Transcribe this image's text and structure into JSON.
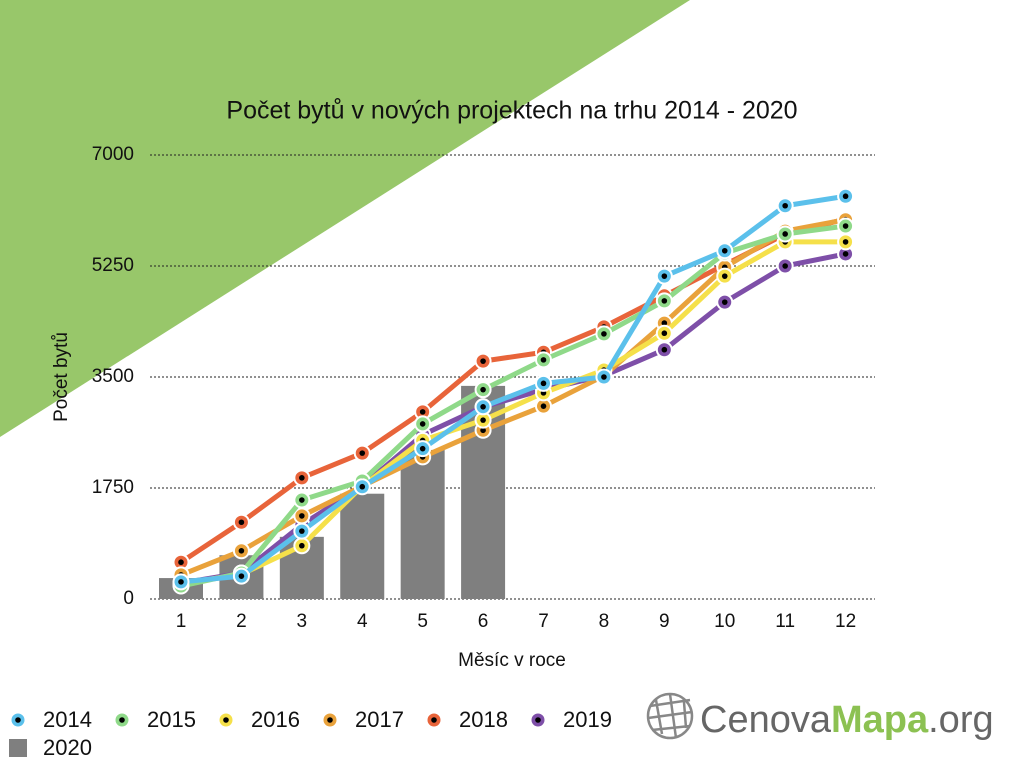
{
  "chart_data": {
    "type": "line",
    "title": "Počet bytů v nových projektech na trhu 2014 - 2020",
    "y_label": "Počet bytů",
    "x_label": "Měsíc v roce",
    "categories": [
      1,
      2,
      3,
      4,
      5,
      6,
      7,
      8,
      9,
      10,
      11,
      12
    ],
    "ylim": [
      0,
      7000
    ],
    "yticks": [
      0,
      1750,
      3500,
      5250,
      7000
    ],
    "grid": true,
    "legend": "bottom",
    "series": [
      {
        "name": "2014",
        "color": "#5bc0eb",
        "values": [
          270,
          360,
          1070,
          1770,
          2370,
          3030,
          3400,
          3500,
          5090,
          5490,
          6200,
          6350
        ]
      },
      {
        "name": "2015",
        "color": "#8fd989",
        "values": [
          205,
          410,
          1560,
          1860,
          2760,
          3300,
          3770,
          4180,
          4700,
          5455,
          5755,
          5880
        ]
      },
      {
        "name": "2016",
        "color": "#f5e04a",
        "values": [
          240,
          390,
          840,
          1780,
          2500,
          2820,
          3250,
          3610,
          4190,
          5090,
          5630,
          5630
        ]
      },
      {
        "name": "2017",
        "color": "#e9a23b",
        "values": [
          380,
          760,
          1310,
          1780,
          2240,
          2660,
          3040,
          3520,
          4350,
          5230,
          5800,
          5980
        ]
      },
      {
        "name": "2018",
        "color": "#e8643a",
        "values": [
          580,
          1210,
          1910,
          2300,
          2950,
          3750,
          3890,
          4290,
          4780,
          5270,
          5750,
          5990
        ]
      },
      {
        "name": "2019",
        "color": "#7e4fa8",
        "values": [
          250,
          410,
          1170,
          1780,
          2590,
          3030,
          3300,
          3520,
          3930,
          4680,
          5250,
          5440
        ]
      },
      {
        "name": "2020",
        "color": "#7f7f7f",
        "type": "bar",
        "values": [
          330,
          690,
          980,
          1660,
          2350,
          3360,
          null,
          null,
          null,
          null,
          null,
          null
        ]
      }
    ]
  },
  "logo": {
    "part1": "Cenova",
    "part2": "Mapa",
    "part3": ".org"
  }
}
